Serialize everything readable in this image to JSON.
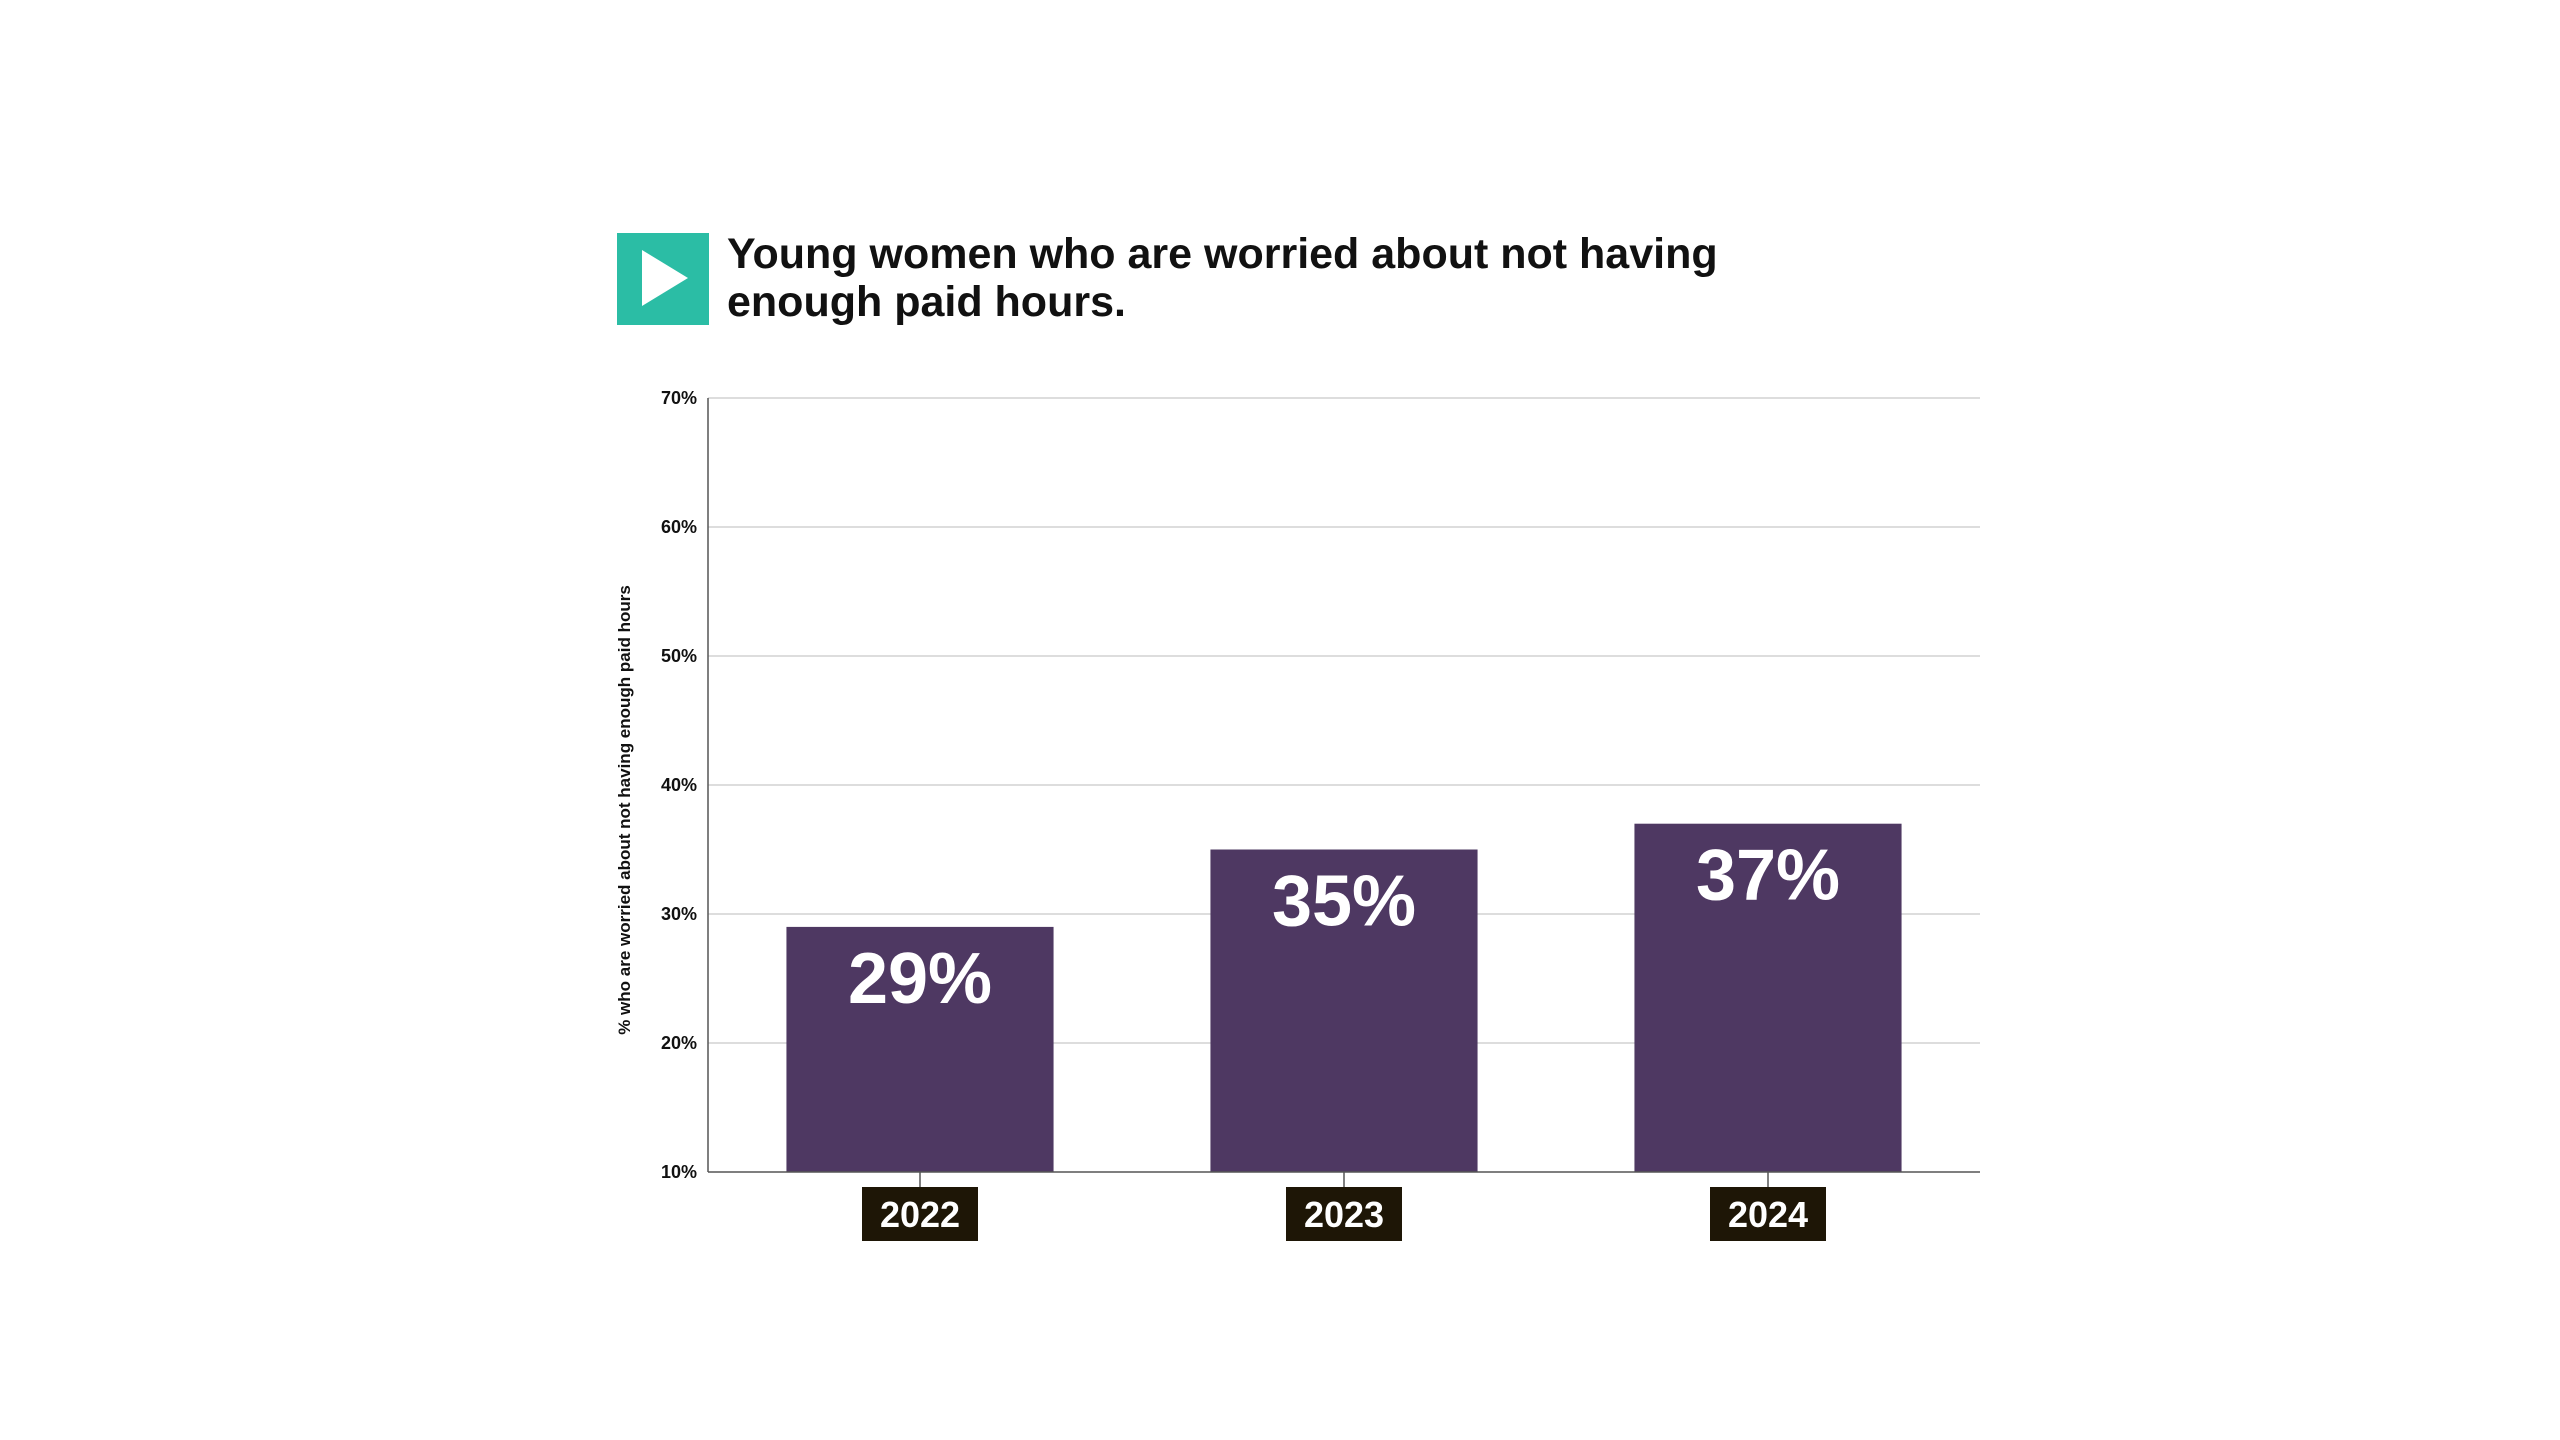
{
  "colors": {
    "bar": "#4e3862",
    "logo_bg": "#2bbda5",
    "logo_fg": "#ffffff",
    "category_label_bg": "#1e1606",
    "gridline": "#d2d2d2",
    "axis": "#555555"
  },
  "logo": {
    "icon": "play-icon"
  },
  "chart_data": {
    "type": "bar",
    "title": "Young women who are worried about not having enough paid hours.",
    "title_lines": [
      "Young women who are worried about not having",
      "enough paid hours."
    ],
    "xlabel": "",
    "ylabel": "% who are worried about not having enough paid hours",
    "categories": [
      "2022",
      "2023",
      "2024"
    ],
    "values": [
      29,
      35,
      37
    ],
    "value_labels": [
      "29%",
      "35%",
      "37%"
    ],
    "ylim": [
      10,
      70
    ],
    "yticks": [
      10,
      20,
      30,
      40,
      50,
      60,
      70
    ],
    "ytick_labels": [
      "10%",
      "20%",
      "30%",
      "40%",
      "50%",
      "60%",
      "70%"
    ],
    "grid": true,
    "legend": "none"
  }
}
